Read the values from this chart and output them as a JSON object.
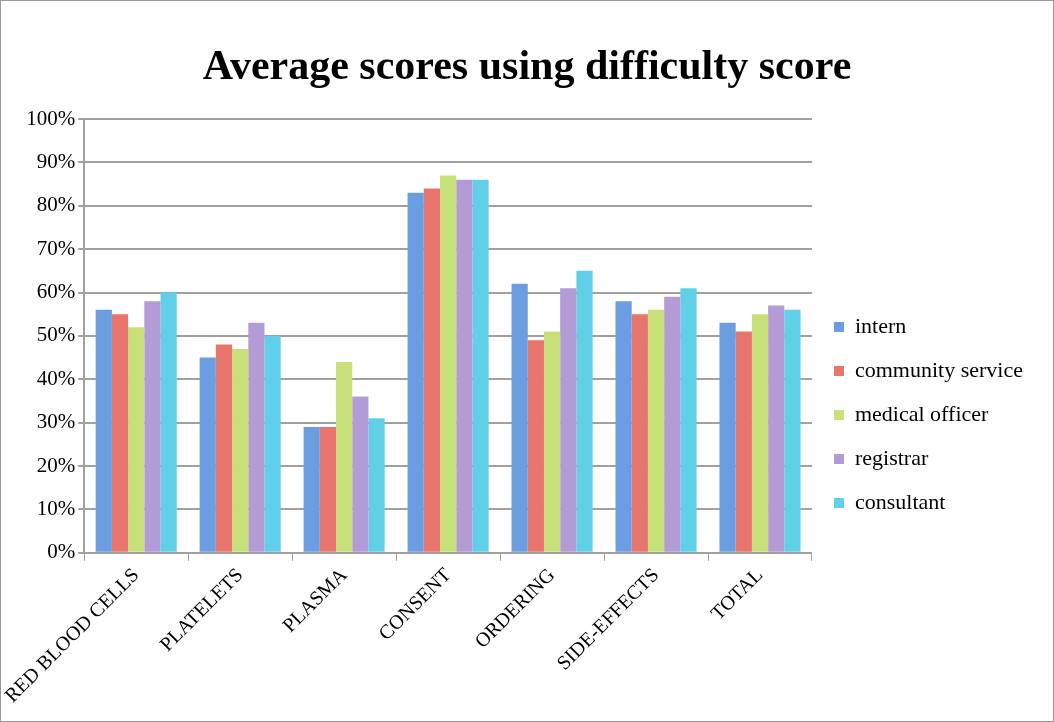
{
  "chart_data": {
    "type": "bar",
    "title": "Average scores using difficulty score",
    "categories": [
      "RED BLOOD CELLS",
      "PLATELETS",
      "PLASMA",
      "CONSENT",
      "ORDERING",
      "SIDE-EFFECTS",
      "TOTAL"
    ],
    "series": [
      {
        "name": "intern",
        "color": "#6b9ee0",
        "values": [
          56,
          45,
          29,
          83,
          62,
          58,
          53
        ]
      },
      {
        "name": "community service",
        "color": "#e8756b",
        "values": [
          55,
          48,
          29,
          84,
          49,
          55,
          51
        ]
      },
      {
        "name": "medical officer",
        "color": "#c8e07a",
        "values": [
          52,
          47,
          44,
          87,
          51,
          56,
          55
        ]
      },
      {
        "name": "registrar",
        "color": "#b39cd6",
        "values": [
          58,
          53,
          36,
          86,
          61,
          59,
          57
        ]
      },
      {
        "name": "consultant",
        "color": "#5fd0e8",
        "values": [
          60,
          50,
          31,
          86,
          65,
          61,
          56
        ]
      }
    ],
    "ylim": [
      0,
      100
    ],
    "yticks": [
      {
        "value": 0,
        "label": "0%"
      },
      {
        "value": 10,
        "label": "10%"
      },
      {
        "value": 20,
        "label": "20%"
      },
      {
        "value": 30,
        "label": "30%"
      },
      {
        "value": 40,
        "label": "40%"
      },
      {
        "value": 50,
        "label": "50%"
      },
      {
        "value": 60,
        "label": "60%"
      },
      {
        "value": 70,
        "label": "70%"
      },
      {
        "value": 80,
        "label": "80%"
      },
      {
        "value": 90,
        "label": "90%"
      },
      {
        "value": 100,
        "label": "100%"
      }
    ],
    "grid": "y",
    "legend": "right"
  }
}
